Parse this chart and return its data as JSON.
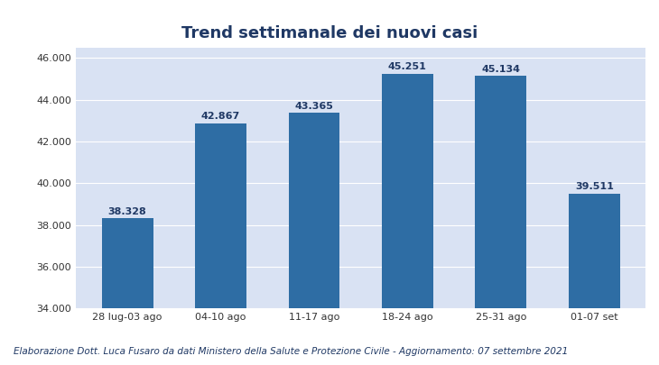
{
  "title": "Trend settimanale dei nuovi casi",
  "categories": [
    "28 lug-03 ago",
    "04-10 ago",
    "11-17 ago",
    "18-24 ago",
    "25-31 ago",
    "01-07 set"
  ],
  "values": [
    38328,
    42867,
    43365,
    45251,
    45134,
    39511
  ],
  "labels": [
    "38.328",
    "42.867",
    "43.365",
    "45.251",
    "45.134",
    "39.511"
  ],
  "bar_color": "#2E6DA4",
  "plot_bg_color": "#D9E2F3",
  "outer_bg_color": "#FFFFFF",
  "ylim_min": 34000,
  "ylim_max": 46500,
  "yticks": [
    34000,
    36000,
    38000,
    40000,
    42000,
    44000,
    46000
  ],
  "ytick_labels": [
    "34.000",
    "36.000",
    "38.000",
    "40.000",
    "42.000",
    "44.000",
    "46.000"
  ],
  "title_color": "#1F3864",
  "title_fontsize": 13,
  "footnote": "Elaborazione Dott. Luca Fusaro da dati Ministero della Salute e Protezione Civile - Aggiornamento: 07 settembre 2021",
  "footnote_color": "#1F3864",
  "footnote_fontsize": 7.5,
  "bar_label_fontsize": 8,
  "bar_label_color": "#1F3864",
  "tick_fontsize": 8,
  "tick_color": "#333333",
  "grid_color": "#FFFFFF",
  "bar_width": 0.55
}
